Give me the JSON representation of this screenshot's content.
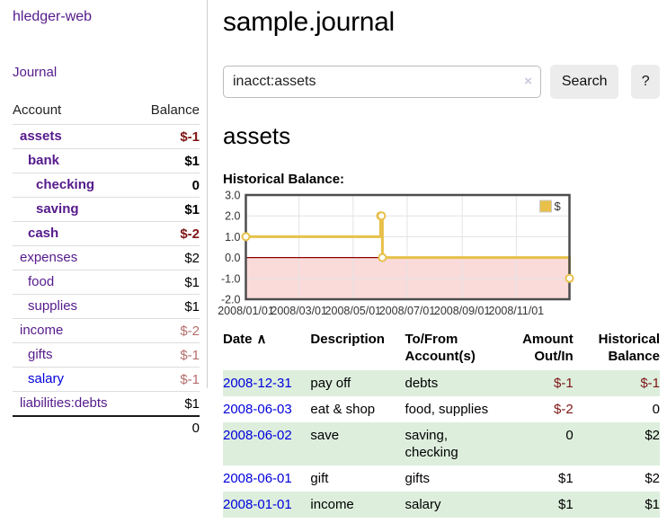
{
  "colors": {
    "purple": "#551a8b",
    "blue": "#0000dd",
    "neg_dark": "#7e1616",
    "neg_light": "#b56d6d",
    "stripe_green": "#ddeedd",
    "button_bg": "#ececec"
  },
  "app": {
    "title": "hledger-web",
    "nav_journal": "Journal"
  },
  "sidebar": {
    "table": {
      "account_header": "Account",
      "balance_header": "Balance",
      "total": "0"
    },
    "accounts": [
      {
        "name": "assets",
        "balance": "$-1",
        "indent": 0,
        "emph": true,
        "neg": "dark"
      },
      {
        "name": "bank",
        "balance": "$1",
        "indent": 1,
        "emph": true
      },
      {
        "name": "checking",
        "balance": "0",
        "indent": 2,
        "emph": true
      },
      {
        "name": "saving",
        "balance": "$1",
        "indent": 2,
        "emph": true
      },
      {
        "name": "cash",
        "balance": "$-2",
        "indent": 1,
        "emph": true,
        "neg": "dark"
      },
      {
        "name": "expenses",
        "balance": "$2",
        "indent": 0
      },
      {
        "name": "food",
        "balance": "$1",
        "indent": 1
      },
      {
        "name": "supplies",
        "balance": "$1",
        "indent": 1
      },
      {
        "name": "income",
        "balance": "$-2",
        "indent": 0,
        "neg": "light"
      },
      {
        "name": "gifts",
        "balance": "$-1",
        "indent": 1,
        "neg": "light"
      },
      {
        "name": "salary",
        "balance": "$-1",
        "indent": 1,
        "neg": "light",
        "link_color": "blue"
      },
      {
        "name": "liabilities:debts",
        "balance": "$1",
        "indent": 0
      }
    ]
  },
  "main": {
    "title": "sample.journal",
    "search": {
      "value": "inacct:assets",
      "clear_icon": "×",
      "search_button": "Search",
      "help_button": "?"
    },
    "account_heading": "assets",
    "section_label": "Historical Balance:"
  },
  "chart_data": {
    "type": "line",
    "step": true,
    "title": "Historical Balance:",
    "x_range": [
      "2008-01-01",
      "2008-12-31"
    ],
    "ylim": [
      -2,
      3
    ],
    "yticks": [
      {
        "value": 3,
        "label": "3.0"
      },
      {
        "value": 2,
        "label": "2.0"
      },
      {
        "value": 1,
        "label": "1.0"
      },
      {
        "value": 0,
        "label": "0.0"
      },
      {
        "value": -1,
        "label": "-1.0"
      },
      {
        "value": -2,
        "label": "-2.0"
      }
    ],
    "xticks": [
      {
        "date": "2008-01-01",
        "label": "2008/01/01"
      },
      {
        "date": "2008-03-01",
        "label": "2008/03/01"
      },
      {
        "date": "2008-05-01",
        "label": "2008/05/01"
      },
      {
        "date": "2008-07-01",
        "label": "2008/07/01"
      },
      {
        "date": "2008-09-01",
        "label": "2008/09/01"
      },
      {
        "date": "2008-11-01",
        "label": "2008/11/01"
      }
    ],
    "series": [
      {
        "name": "$",
        "color": "#e8c04a",
        "points": [
          [
            "2008-01-01",
            1
          ],
          [
            "2008-06-01",
            2
          ],
          [
            "2008-06-02",
            2
          ],
          [
            "2008-06-03",
            0
          ],
          [
            "2008-12-31",
            -1
          ]
        ]
      }
    ],
    "legend": {
      "position": "top-right",
      "label": "$"
    },
    "style": {
      "negative_region": "#fbdada",
      "zero_line": "#8b0000",
      "grid": "#e3e3e3",
      "border": "#4d4d4d",
      "grid_on": true
    }
  },
  "register": {
    "headers": [
      {
        "lines": "Date",
        "align": "left",
        "sortable": true,
        "sort_icon": "∧"
      },
      {
        "lines": "Description",
        "align": "left"
      },
      {
        "lines": "To/From\nAccount(s)",
        "align": "left"
      },
      {
        "lines": "Amount\nOut/In",
        "align": "right"
      },
      {
        "lines": "Historical\nBalance",
        "align": "right"
      }
    ],
    "rows": [
      {
        "date": "2008-12-31",
        "description": "pay off",
        "accounts": "debts",
        "amount": "$-1",
        "amount_negative": true,
        "balance": "$-1",
        "balance_negative": true
      },
      {
        "date": "2008-06-03",
        "description": "eat & shop",
        "accounts": "food, supplies",
        "amount": "$-2",
        "amount_negative": true,
        "balance": "0",
        "balance_negative": false
      },
      {
        "date": "2008-06-02",
        "description": "save",
        "accounts": "saving, checking",
        "amount": "0",
        "amount_negative": false,
        "balance": "$2",
        "balance_negative": false
      },
      {
        "date": "2008-06-01",
        "description": "gift",
        "accounts": "gifts",
        "amount": "$1",
        "amount_negative": false,
        "balance": "$2",
        "balance_negative": false
      },
      {
        "date": "2008-01-01",
        "description": "income",
        "accounts": "salary",
        "amount": "$1",
        "amount_negative": false,
        "balance": "$1",
        "balance_negative": false
      }
    ]
  }
}
